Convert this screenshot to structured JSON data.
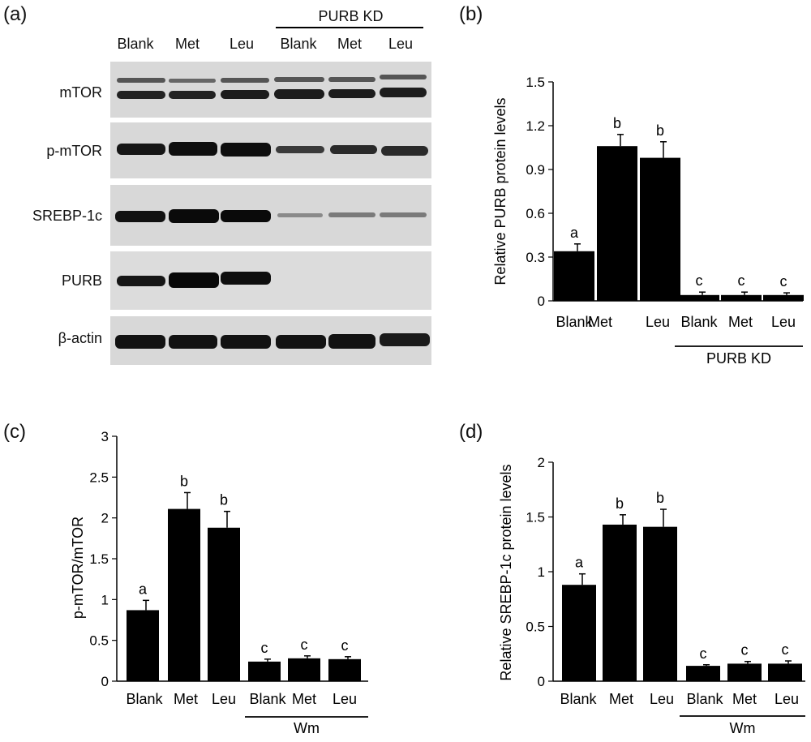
{
  "panels": {
    "a": "(a)",
    "b": "(b)",
    "c": "(c)",
    "d": "(d)"
  },
  "western_blot": {
    "columns": [
      "Blank",
      "Met",
      "Leu",
      "Blank",
      "Met",
      "Leu"
    ],
    "group_label": "PURB KD",
    "rows": [
      "mTOR",
      "p-mTOR",
      "SREBP-1c",
      "PURB",
      "β-actin"
    ]
  },
  "chart_data": [
    {
      "id": "b",
      "type": "bar",
      "categories": [
        "Blank",
        "Met",
        "Leu",
        "Blank",
        "Met",
        "Leu"
      ],
      "values": [
        0.34,
        1.06,
        0.98,
        0.04,
        0.04,
        0.04
      ],
      "errors": [
        0.05,
        0.08,
        0.11,
        0.02,
        0.02,
        0.015
      ],
      "letters": [
        "a",
        "b",
        "b",
        "c",
        "c",
        "c"
      ],
      "ylabel": "Relative PURB protein levels",
      "yticks": [
        "0",
        "0.3",
        "0.6",
        "0.9",
        "1.2",
        "1.5"
      ],
      "ylim": [
        0,
        1.5
      ],
      "group_label": "PURB KD"
    },
    {
      "id": "c",
      "type": "bar",
      "categories": [
        "Blank",
        "Met",
        "Leu",
        "Blank",
        "Met",
        "Leu"
      ],
      "values": [
        0.87,
        2.11,
        1.88,
        0.24,
        0.28,
        0.27
      ],
      "errors": [
        0.12,
        0.2,
        0.2,
        0.03,
        0.03,
        0.03
      ],
      "letters": [
        "a",
        "b",
        "b",
        "c",
        "c",
        "c"
      ],
      "ylabel": "p-mTOR/mTOR",
      "yticks": [
        "0",
        "0.5",
        "1",
        "1.5",
        "2",
        "2.5",
        "3"
      ],
      "ylim": [
        0,
        3
      ],
      "group_label": "Wm"
    },
    {
      "id": "d",
      "type": "bar",
      "categories": [
        "Blank",
        "Met",
        "Leu",
        "Blank",
        "Met",
        "Leu"
      ],
      "values": [
        0.88,
        1.43,
        1.41,
        0.14,
        0.16,
        0.16
      ],
      "errors": [
        0.1,
        0.09,
        0.16,
        0.01,
        0.02,
        0.025
      ],
      "letters": [
        "a",
        "b",
        "b",
        "c",
        "c",
        "c"
      ],
      "ylabel": "Relative SREBP-1c protein levels",
      "yticks": [
        "0",
        "0.5",
        "1",
        "1.5",
        "2"
      ],
      "ylim": [
        0,
        2
      ],
      "group_label": "Wm"
    }
  ]
}
